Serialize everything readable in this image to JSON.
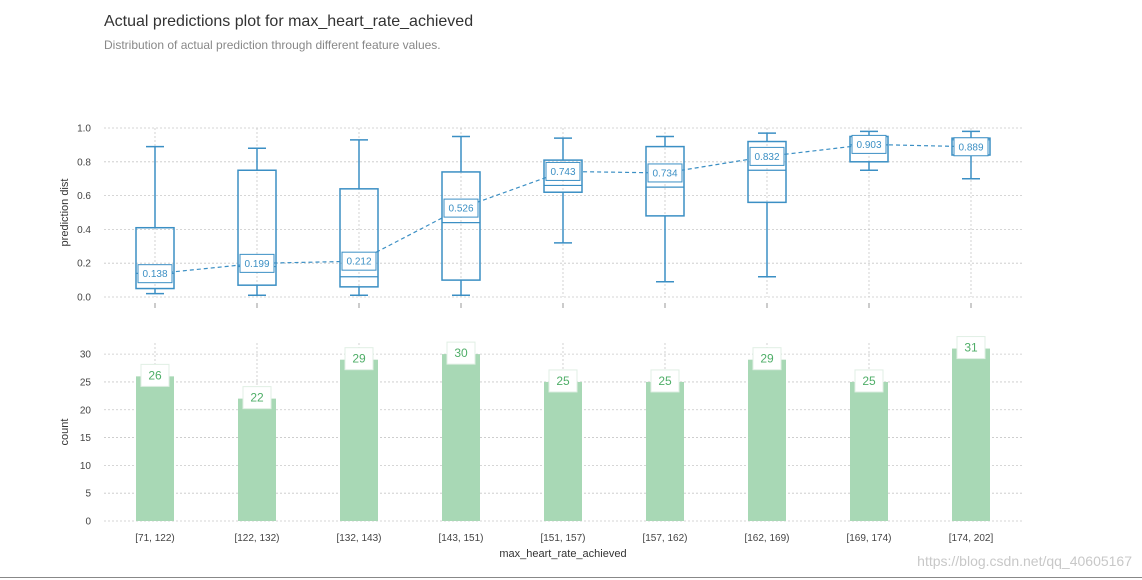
{
  "title": "Actual predictions plot for max_heart_rate_achieved",
  "subtitle": "Distribution of actual prediction through different feature values.",
  "watermark": "https://blog.csdn.net/qq_40605167",
  "colors": {
    "box": "#3b8fc4",
    "bar": "#a8d8b5",
    "bar_label": "#4fae68",
    "grid": "#c8c8c8"
  },
  "chart_data": [
    {
      "type": "box",
      "title": "",
      "ylabel": "prediction dist",
      "ylim": [
        0,
        1.0
      ],
      "yticks": [
        0.0,
        0.2,
        0.4,
        0.6,
        0.8,
        1.0
      ],
      "ytick_labels": [
        "0.0",
        "0.2",
        "0.4",
        "0.6",
        "0.8",
        "1.0"
      ],
      "categories": [
        "[71, 122)",
        "[122, 132)",
        "[132, 143)",
        "[143, 151)",
        "[151, 157)",
        "[157, 162)",
        "[162, 169)",
        "[169, 174)",
        "[174, 202]"
      ],
      "boxes": [
        {
          "min": 0.02,
          "q1": 0.05,
          "median": 0.14,
          "q3": 0.41,
          "max": 0.89
        },
        {
          "min": 0.01,
          "q1": 0.07,
          "median": 0.18,
          "q3": 0.75,
          "max": 0.88
        },
        {
          "min": 0.01,
          "q1": 0.06,
          "median": 0.12,
          "q3": 0.64,
          "max": 0.93
        },
        {
          "min": 0.01,
          "q1": 0.1,
          "median": 0.44,
          "q3": 0.74,
          "max": 0.95
        },
        {
          "min": 0.32,
          "q1": 0.62,
          "median": 0.66,
          "q3": 0.81,
          "max": 0.94
        },
        {
          "min": 0.09,
          "q1": 0.48,
          "median": 0.65,
          "q3": 0.89,
          "max": 0.95
        },
        {
          "min": 0.12,
          "q1": 0.56,
          "median": 0.75,
          "q3": 0.92,
          "max": 0.97
        },
        {
          "min": 0.75,
          "q1": 0.8,
          "median": 0.9,
          "q3": 0.95,
          "max": 0.98
        },
        {
          "min": 0.7,
          "q1": 0.84,
          "median": 0.93,
          "q3": 0.94,
          "max": 0.98
        }
      ],
      "mean_values": [
        0.138,
        0.199,
        0.212,
        0.526,
        0.743,
        0.734,
        0.832,
        0.903,
        0.889
      ],
      "mean_labels": [
        "0.138",
        "0.199",
        "0.212",
        "0.526",
        "0.743",
        "0.734",
        "0.832",
        "0.903",
        "0.889"
      ]
    },
    {
      "type": "bar",
      "ylabel": "count",
      "xlabel": "max_heart_rate_achieved",
      "ylim": [
        0,
        32
      ],
      "yticks": [
        0,
        5,
        10,
        15,
        20,
        25,
        30
      ],
      "ytick_labels": [
        "0",
        "5",
        "10",
        "15",
        "20",
        "25",
        "30"
      ],
      "categories": [
        "[71, 122)",
        "[122, 132)",
        "[132, 143)",
        "[143, 151)",
        "[151, 157)",
        "[157, 162)",
        "[162, 169)",
        "[169, 174)",
        "[174, 202]"
      ],
      "values": [
        26,
        22,
        29,
        30,
        25,
        25,
        29,
        25,
        31
      ],
      "value_labels": [
        "26",
        "22",
        "29",
        "30",
        "25",
        "25",
        "29",
        "25",
        "31"
      ]
    }
  ]
}
